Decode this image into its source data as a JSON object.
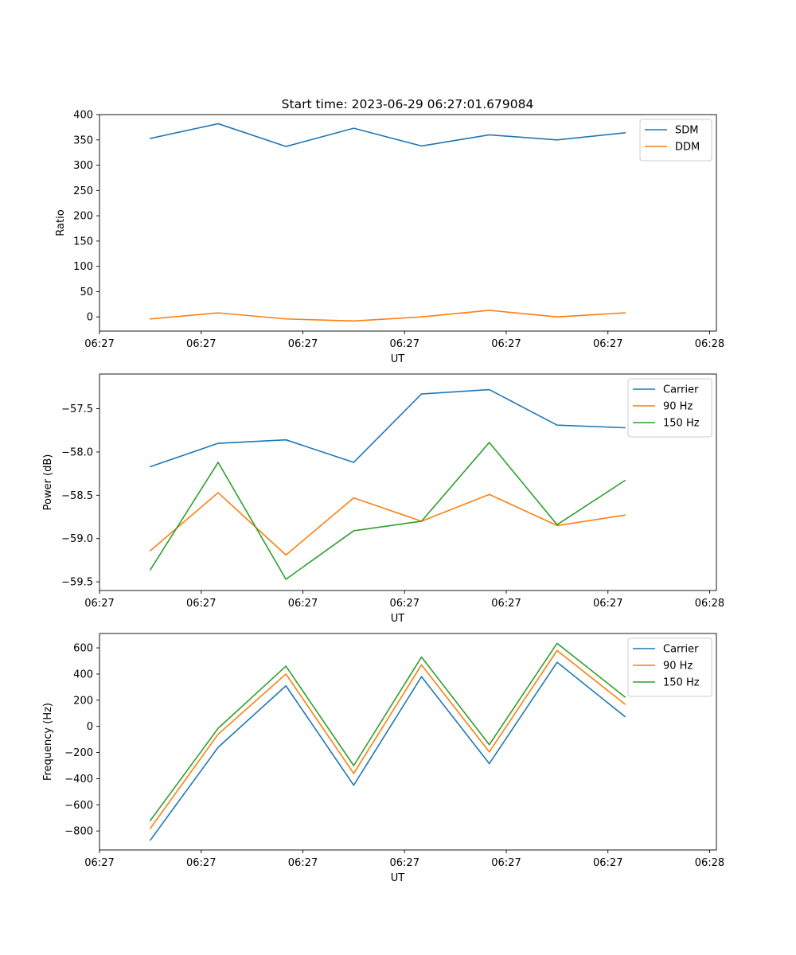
{
  "figure": {
    "title": "Start time: 2023-06-29 06:27:01.679084"
  },
  "chart_data": [
    {
      "type": "line",
      "title": "Start time: 2023-06-29 06:27:01.679084",
      "xlabel": "UT",
      "ylabel": "Ratio",
      "xlim": [
        0,
        9.1
      ],
      "ylim": [
        -28,
        400
      ],
      "x": [
        0.75,
        1.75,
        2.75,
        3.75,
        4.75,
        5.75,
        6.75,
        7.75
      ],
      "xticks": [
        {
          "value": 0,
          "label": "06:27"
        },
        {
          "value": 1.5,
          "label": "06:27"
        },
        {
          "value": 3,
          "label": "06:27"
        },
        {
          "value": 4.5,
          "label": "06:27"
        },
        {
          "value": 6,
          "label": "06:27"
        },
        {
          "value": 7.5,
          "label": "06:27"
        },
        {
          "value": 9,
          "label": "06:28"
        }
      ],
      "yticks": [
        0,
        50,
        100,
        150,
        200,
        250,
        300,
        350,
        400
      ],
      "legend": "top-right",
      "series": [
        {
          "name": "SDM",
          "color": "#1f77b4",
          "values": [
            353,
            382,
            337,
            373,
            338,
            360,
            350,
            364
          ]
        },
        {
          "name": "DDM",
          "color": "#ff7f0e",
          "values": [
            -4,
            8,
            -4,
            -8,
            0,
            13,
            0,
            8
          ]
        }
      ]
    },
    {
      "type": "line",
      "xlabel": "UT",
      "ylabel": "Power (dB)",
      "xlim": [
        0,
        9.1
      ],
      "ylim": [
        -59.6,
        -57.1
      ],
      "x": [
        0.75,
        1.75,
        2.75,
        3.75,
        4.75,
        5.75,
        6.75,
        7.75
      ],
      "xticks": [
        {
          "value": 0,
          "label": "06:27"
        },
        {
          "value": 1.5,
          "label": "06:27"
        },
        {
          "value": 3,
          "label": "06:27"
        },
        {
          "value": 4.5,
          "label": "06:27"
        },
        {
          "value": 6,
          "label": "06:27"
        },
        {
          "value": 7.5,
          "label": "06:27"
        },
        {
          "value": 9,
          "label": "06:28"
        }
      ],
      "yticks": [
        {
          "value": -57.5,
          "label": "−57.5"
        },
        {
          "value": -58.0,
          "label": "−58.0"
        },
        {
          "value": -58.5,
          "label": "−58.5"
        },
        {
          "value": -59.0,
          "label": "−59.0"
        },
        {
          "value": -59.5,
          "label": "−59.5"
        }
      ],
      "legend": "top-right",
      "series": [
        {
          "name": "Carrier",
          "color": "#1f77b4",
          "values": [
            -58.17,
            -57.9,
            -57.86,
            -58.12,
            -57.33,
            -57.28,
            -57.69,
            -57.72
          ]
        },
        {
          "name": "90 Hz",
          "color": "#ff7f0e",
          "values": [
            -59.14,
            -58.47,
            -59.19,
            -58.53,
            -58.8,
            -58.49,
            -58.85,
            -58.73
          ]
        },
        {
          "name": "150 Hz",
          "color": "#2ca02c",
          "values": [
            -59.36,
            -58.12,
            -59.47,
            -58.91,
            -58.8,
            -57.89,
            -58.84,
            -58.33
          ]
        }
      ]
    },
    {
      "type": "line",
      "xlabel": "UT",
      "ylabel": "Frequency (Hz)",
      "xlim": [
        0,
        9.1
      ],
      "ylim": [
        -945,
        710
      ],
      "x": [
        0.75,
        1.75,
        2.75,
        3.75,
        4.75,
        5.75,
        6.75,
        7.75
      ],
      "xticks": [
        {
          "value": 0,
          "label": "06:27"
        },
        {
          "value": 1.5,
          "label": "06:27"
        },
        {
          "value": 3,
          "label": "06:27"
        },
        {
          "value": 4.5,
          "label": "06:27"
        },
        {
          "value": 6,
          "label": "06:27"
        },
        {
          "value": 7.5,
          "label": "06:27"
        },
        {
          "value": 9,
          "label": "06:28"
        }
      ],
      "yticks": [
        {
          "value": 600,
          "label": "600"
        },
        {
          "value": 400,
          "label": "400"
        },
        {
          "value": 200,
          "label": "200"
        },
        {
          "value": 0,
          "label": "0"
        },
        {
          "value": -200,
          "label": "−200"
        },
        {
          "value": -400,
          "label": "−400"
        },
        {
          "value": -600,
          "label": "−600"
        },
        {
          "value": -800,
          "label": "−800"
        }
      ],
      "legend": "top-right",
      "series": [
        {
          "name": "Carrier",
          "color": "#1f77b4",
          "values": [
            -870,
            -160,
            310,
            -450,
            380,
            -285,
            490,
            75
          ]
        },
        {
          "name": "90 Hz",
          "color": "#ff7f0e",
          "values": [
            -780,
            -60,
            400,
            -360,
            470,
            -195,
            580,
            170
          ]
        },
        {
          "name": "150 Hz",
          "color": "#2ca02c",
          "values": [
            -720,
            -15,
            460,
            -300,
            530,
            -140,
            635,
            225
          ]
        }
      ]
    }
  ]
}
